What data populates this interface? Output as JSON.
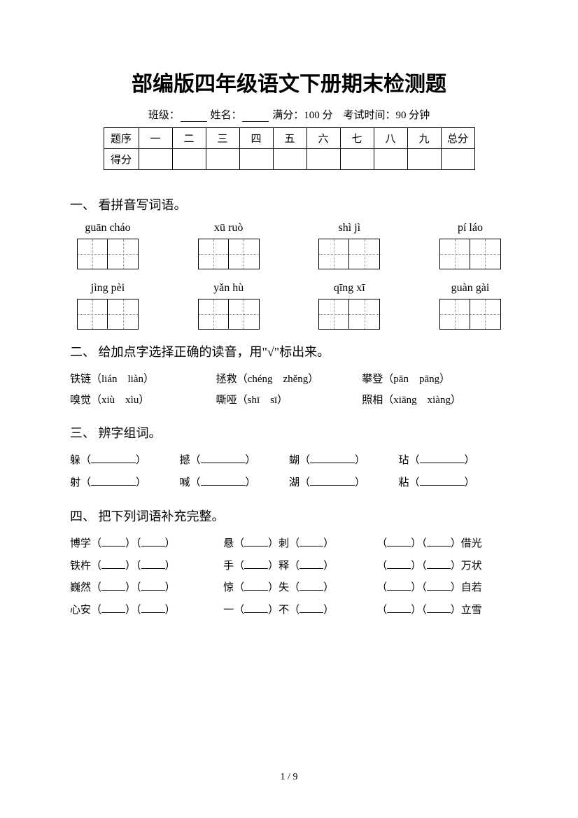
{
  "title": "部编版四年级语文下册期末检测题",
  "meta": {
    "class_label": "班级：",
    "name_label": "姓名：",
    "full_score_label": "满分：",
    "full_score_value": "100 分",
    "time_label": "考试时间：",
    "time_value": "90 分钟"
  },
  "score_table": {
    "row1_label": "题序",
    "row2_label": "得分",
    "cols": [
      "一",
      "二",
      "三",
      "四",
      "五",
      "六",
      "七",
      "八",
      "九",
      "总分"
    ]
  },
  "q1": {
    "heading": "一、 看拼音写词语。",
    "row1": [
      "guān cháo",
      "xū ruò",
      "shì jì",
      "pí láo"
    ],
    "row2": [
      "jìng pèi",
      "yǎn hù",
      "qīng xī",
      "guàn gài"
    ]
  },
  "q2": {
    "heading": "二、 给加点字选择正确的读音，用\"√\"标出来。",
    "items": [
      {
        "char": "铁链",
        "opts": "（lián　liàn）"
      },
      {
        "char": "拯救",
        "opts": "（chéng　zhěng）"
      },
      {
        "char": "攀登",
        "opts": "（pān　pāng）"
      },
      {
        "char": "嗅觉",
        "opts": "（xiù　xìu）"
      },
      {
        "char": "嘶哑",
        "opts": "（shī　sī）"
      },
      {
        "char": "照相",
        "opts": "（xiāng　xiàng）"
      }
    ]
  },
  "q3": {
    "heading": "三、 辨字组词。",
    "row1": [
      "躲",
      "撼",
      "蝴",
      "玷"
    ],
    "row2": [
      "射",
      "喊",
      "湖",
      "粘"
    ]
  },
  "q4": {
    "heading": "四、 把下列词语补充完整。",
    "rows": [
      {
        "a": "博学",
        "b1": "悬",
        "b2": "刺",
        "c": "借光"
      },
      {
        "a": "铁杵",
        "b1": "手",
        "b2": "释",
        "c": "万状"
      },
      {
        "a": "巍然",
        "b1": "惊",
        "b2": "失",
        "c": "自若"
      },
      {
        "a": "心安",
        "b1": "一",
        "b2": "不",
        "c": "立雪"
      }
    ]
  },
  "page": {
    "current": "1",
    "total": "9"
  }
}
